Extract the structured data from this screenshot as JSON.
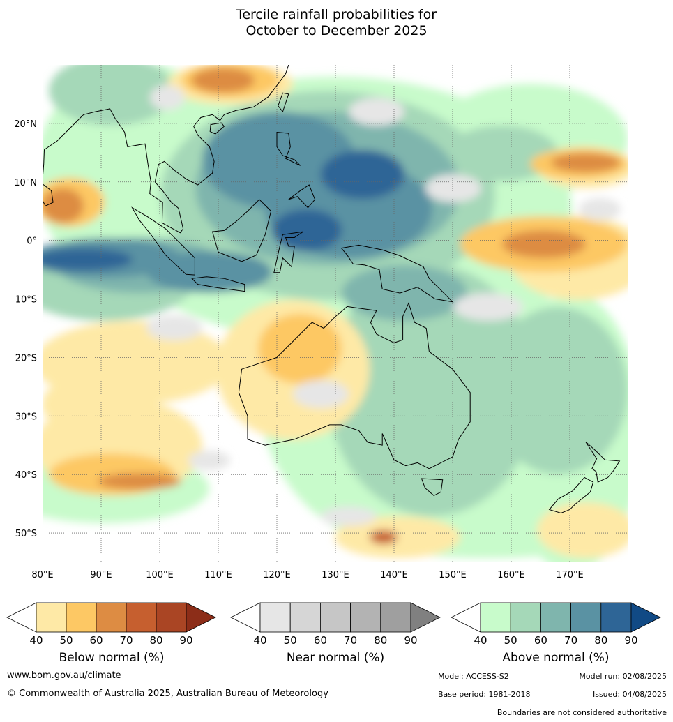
{
  "title": {
    "line1": "Tercile rainfall probabilities for",
    "line2": "October to December 2025"
  },
  "map": {
    "lat_labels": [
      "20°N",
      "10°N",
      "0°",
      "10°S",
      "20°S",
      "30°S",
      "40°S",
      "50°S"
    ],
    "lon_labels": [
      "80°E",
      "90°E",
      "100°E",
      "110°E",
      "120°E",
      "130°E",
      "140°E",
      "150°E",
      "160°E",
      "170°E"
    ],
    "lat_range": [
      -55,
      30
    ],
    "lon_range": [
      80,
      180
    ]
  },
  "legends": [
    {
      "title": "Below normal (%)",
      "ticks": [
        "40",
        "50",
        "60",
        "70",
        "80",
        "90"
      ],
      "colors": [
        "#ffffff",
        "#fee9a6",
        "#fdc864",
        "#dd8c43",
        "#c65f2f",
        "#aa4524",
        "#8c2d18"
      ]
    },
    {
      "title": "Near normal (%)",
      "ticks": [
        "40",
        "50",
        "60",
        "70",
        "80",
        "90"
      ],
      "colors": [
        "#ffffff",
        "#e6e6e6",
        "#d6d6d6",
        "#c6c6c6",
        "#b3b3b3",
        "#9f9f9f",
        "#808080"
      ]
    },
    {
      "title": "Above normal (%)",
      "ticks": [
        "40",
        "50",
        "60",
        "70",
        "80",
        "90"
      ],
      "colors": [
        "#ffffff",
        "#c8fbcb",
        "#a5d8b8",
        "#7fb5ad",
        "#5a92a3",
        "#2e6596",
        "#114a85"
      ]
    }
  ],
  "footer": {
    "website": "www.bom.gov.au/climate",
    "copyright": "© Commonwealth of Australia 2025, Australian Bureau of Meteorology",
    "model": "Model: ACCESS-S2",
    "model_run": "Model run: 02/08/2025",
    "base_period": "Base period: 1981-2018",
    "issued": "Issued: 04/08/2025",
    "disclaimer": "Boundaries are not considered authoritative"
  }
}
